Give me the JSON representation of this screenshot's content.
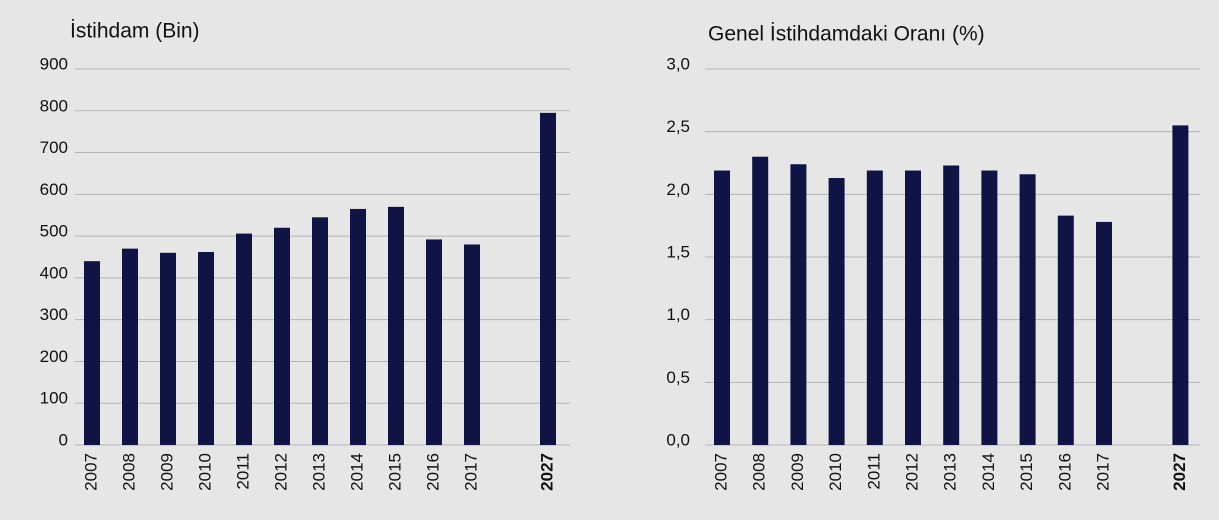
{
  "chart_data": [
    {
      "type": "bar",
      "title": "İstihdam (Bin)",
      "categories": [
        "2007",
        "2008",
        "2009",
        "2010",
        "2011",
        "2012",
        "2013",
        "2014",
        "2015",
        "2016",
        "2017",
        null,
        "2027"
      ],
      "values": [
        440,
        470,
        460,
        462,
        506,
        520,
        545,
        565,
        570,
        492,
        480,
        null,
        795
      ],
      "color": "#0f1445",
      "ylim": [
        0,
        900
      ],
      "yticks": [
        0,
        100,
        200,
        300,
        400,
        500,
        600,
        700,
        800,
        900
      ],
      "grid": true
    },
    {
      "type": "bar",
      "title": "Genel İstihdamdaki Oranı (%)",
      "categories": [
        "2007",
        "2008",
        "2009",
        "2010",
        "2011",
        "2012",
        "2013",
        "2014",
        "2015",
        "2016",
        "2017",
        null,
        "2027"
      ],
      "values": [
        2.19,
        2.3,
        2.24,
        2.13,
        2.19,
        2.19,
        2.23,
        2.19,
        2.16,
        1.83,
        1.78,
        null,
        2.55
      ],
      "color": "#0f1445",
      "ylim": [
        0,
        3.0
      ],
      "yticks": [
        {
          "value": 0,
          "label": "0,0"
        },
        {
          "value": 0.5,
          "label": "0,5"
        },
        {
          "value": 1.0,
          "label": "1,0"
        },
        {
          "value": 1.5,
          "label": "1,5"
        },
        {
          "value": 2.0,
          "label": "2,0"
        },
        {
          "value": 2.5,
          "label": "2,5"
        },
        {
          "value": 3.0,
          "label": "3,0"
        }
      ],
      "grid": true
    }
  ]
}
